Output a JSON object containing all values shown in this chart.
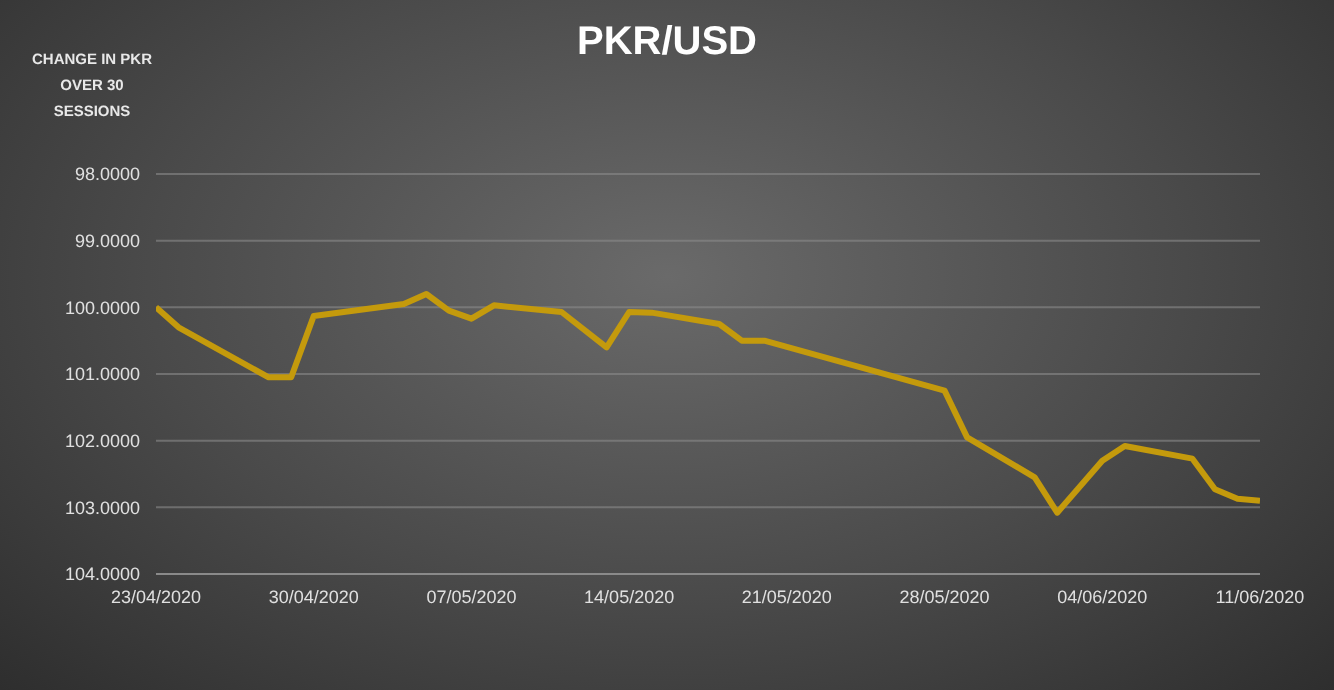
{
  "chart_data": {
    "type": "line",
    "title": "PKR/USD",
    "ylabel": "CHANGE IN PKR OVER 30 SESSIONS",
    "x": [
      "2020-04-23",
      "2020-04-24",
      "2020-04-28",
      "2020-04-29",
      "2020-04-30",
      "2020-05-04",
      "2020-05-05",
      "2020-05-06",
      "2020-05-07",
      "2020-05-08",
      "2020-05-11",
      "2020-05-13",
      "2020-05-14",
      "2020-05-15",
      "2020-05-18",
      "2020-05-19",
      "2020-05-20",
      "2020-05-28",
      "2020-05-29",
      "2020-06-01",
      "2020-06-02",
      "2020-06-04",
      "2020-06-05",
      "2020-06-08",
      "2020-06-09",
      "2020-06-10",
      "2020-06-11"
    ],
    "series": [
      {
        "color": "#c49a0c",
        "values": [
          100.0,
          100.3,
          101.05,
          101.05,
          100.13,
          99.95,
          99.8,
          100.05,
          100.17,
          99.97,
          100.07,
          100.6,
          100.07,
          100.08,
          100.25,
          100.5,
          100.5,
          101.25,
          101.95,
          102.55,
          103.08,
          102.3,
          102.08,
          102.27,
          102.73,
          102.87,
          102.9
        ]
      }
    ],
    "xlim": [
      "2020-04-23",
      "2020-06-11"
    ],
    "xticks": [
      {
        "value": "2020-04-23",
        "label": "23/04/2020"
      },
      {
        "value": "2020-04-30",
        "label": "30/04/2020"
      },
      {
        "value": "2020-05-07",
        "label": "07/05/2020"
      },
      {
        "value": "2020-05-14",
        "label": "14/05/2020"
      },
      {
        "value": "2020-05-21",
        "label": "21/05/2020"
      },
      {
        "value": "2020-05-28",
        "label": "28/05/2020"
      },
      {
        "value": "2020-06-04",
        "label": "04/06/2020"
      },
      {
        "value": "2020-06-11",
        "label": "11/06/2020"
      }
    ],
    "ylim": [
      104,
      98
    ],
    "yticks": [
      {
        "value": 98,
        "label": "98.0000"
      },
      {
        "value": 99,
        "label": "99.0000"
      },
      {
        "value": 100,
        "label": "100.0000"
      },
      {
        "value": 101,
        "label": "101.0000"
      },
      {
        "value": 102,
        "label": "102.0000"
      },
      {
        "value": 103,
        "label": "103.0000"
      },
      {
        "value": 104,
        "label": "104.0000"
      }
    ],
    "grid": "y",
    "legend": false,
    "marker": "none",
    "line_style": "solid"
  }
}
